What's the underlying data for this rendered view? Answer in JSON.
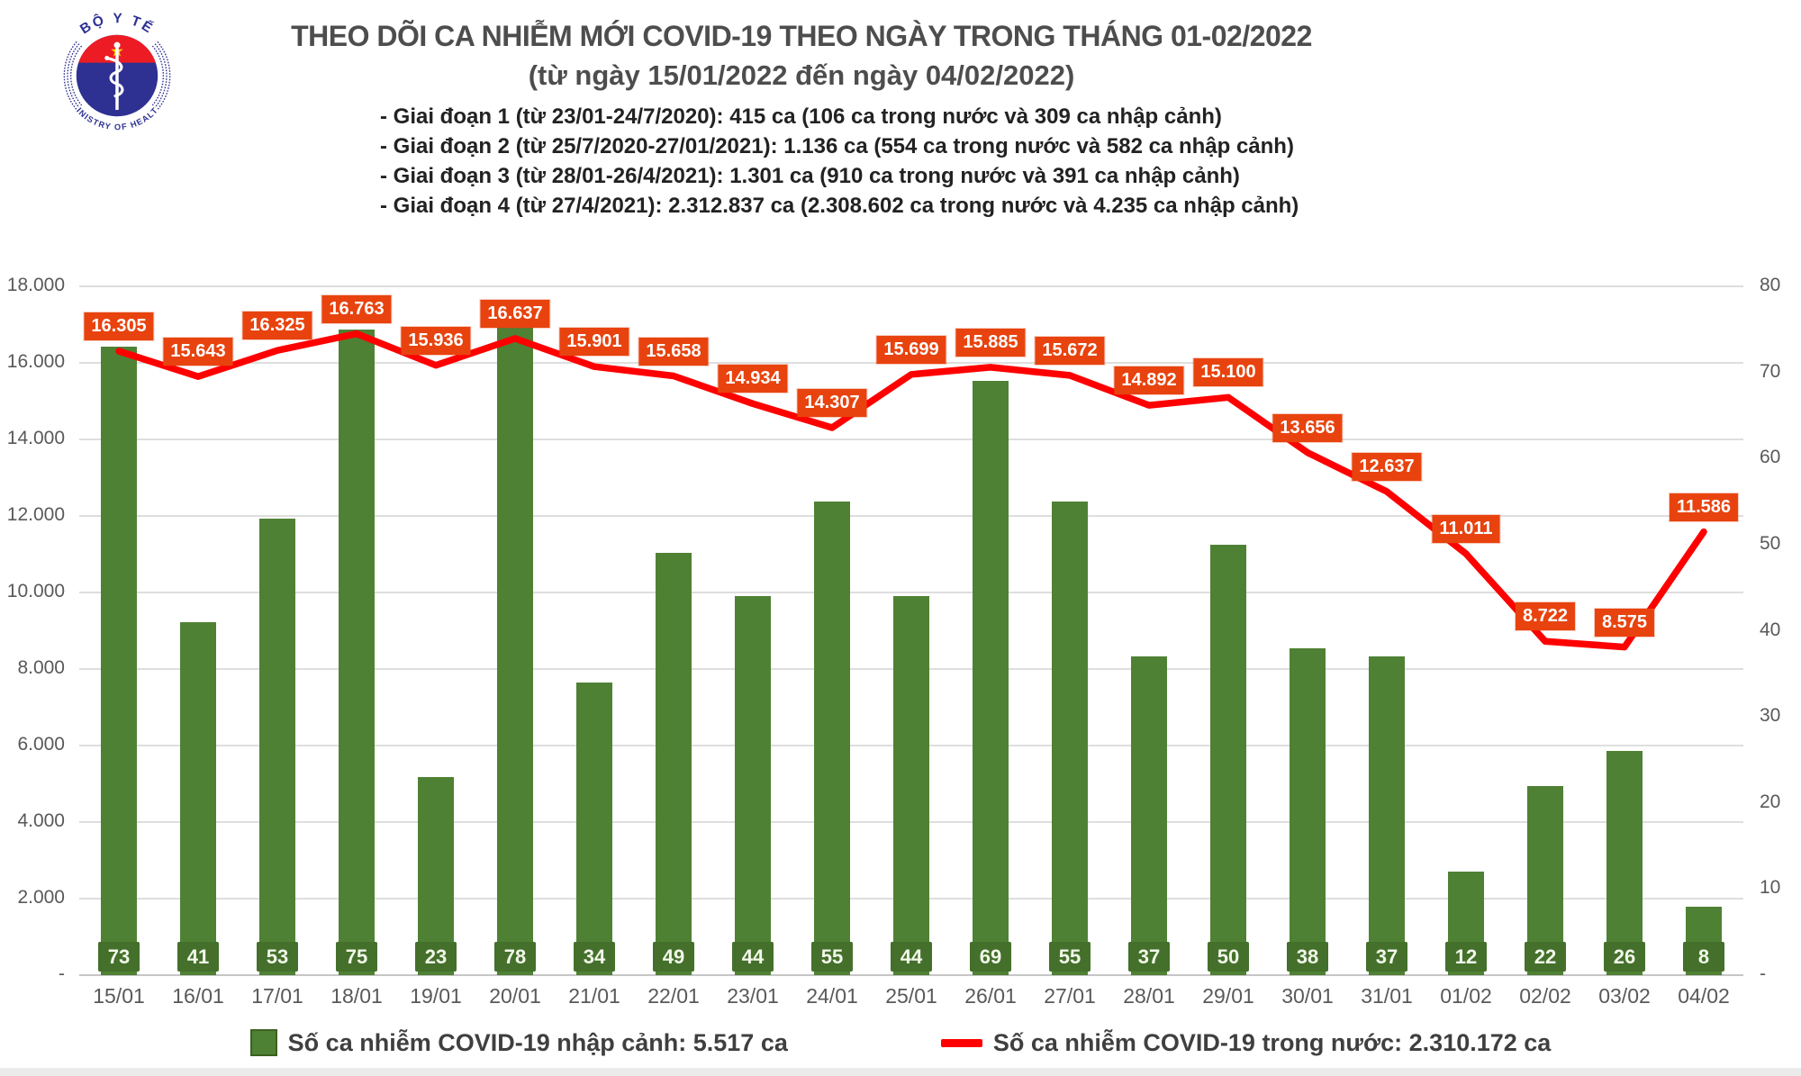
{
  "logo": {
    "top_text": "BỘ Y TẾ",
    "bottom_text": "MINISTRY OF HEALTH",
    "colors": {
      "blue": "#2e3192",
      "red": "#ed1c24",
      "star_yellow": "#ffd500"
    }
  },
  "header": {
    "title_line1": "THEO DÕI CA NHIỄM MỚI COVID-19 THEO NGÀY TRONG THÁNG 01-02/2022",
    "title_line2": "(từ ngày 15/01/2022 đến ngày 04/02/2022)",
    "bullets": [
      "- Giai đoạn 1 (từ 23/01-24/7/2020): 415 ca (106 ca trong nước và 309 ca nhập cảnh)",
      "- Giai đoạn 2 (từ 25/7/2020-27/01/2021): 1.136 ca (554 ca trong nước và 582 ca nhập cảnh)",
      "- Giai đoạn 3 (từ 28/01-26/4/2021): 1.301 ca (910 ca trong nước và 391 ca nhập cảnh)",
      "- Giai đoạn 4 (từ 27/4/2021): 2.312.837 ca (2.308.602 ca trong nước và 4.235 ca nhập cảnh)"
    ]
  },
  "chart_data": {
    "type": "combo",
    "grid": true,
    "legend_position": "bottom",
    "categories": [
      "15/01",
      "16/01",
      "17/01",
      "18/01",
      "19/01",
      "20/01",
      "21/01",
      "22/01",
      "23/01",
      "24/01",
      "25/01",
      "26/01",
      "27/01",
      "28/01",
      "29/01",
      "30/01",
      "31/01",
      "01/02",
      "02/02",
      "03/02",
      "04/02"
    ],
    "series": [
      {
        "name": "Số ca nhiễm COVID-19 nhập cảnh: 5.517 ca",
        "type": "bar",
        "axis": "right",
        "color": "#4f8134",
        "label_box_color": "#44702b",
        "values": [
          73,
          41,
          53,
          75,
          23,
          78,
          34,
          49,
          44,
          55,
          44,
          69,
          55,
          37,
          50,
          38,
          37,
          12,
          22,
          26,
          8
        ]
      },
      {
        "name": "Số ca nhiễm COVID-19 trong nước: 2.310.172 ca",
        "type": "line",
        "axis": "left",
        "color": "#fe0000",
        "label_box_color": "#e8430e",
        "values": [
          16305,
          15643,
          16325,
          16763,
          15936,
          16637,
          15901,
          15658,
          14934,
          14307,
          15699,
          15885,
          15672,
          14892,
          15100,
          13656,
          12637,
          11011,
          8722,
          8575,
          11586
        ],
        "labels": [
          "16.305",
          "15.643",
          "16.325",
          "16.763",
          "15.936",
          "16.637",
          "15.901",
          "15.658",
          "14.934",
          "14.307",
          "15.699",
          "15.885",
          "15.672",
          "14.892",
          "15.100",
          "13.656",
          "12.637",
          "11.011",
          "8.722",
          "8.575",
          "11.586"
        ]
      }
    ],
    "left_axis": {
      "min": 0,
      "max": 18000,
      "step": 2000,
      "tick_labels": [
        "-",
        "2.000",
        "4.000",
        "6.000",
        "8.000",
        "10.000",
        "12.000",
        "14.000",
        "16.000",
        "18.000"
      ]
    },
    "right_axis": {
      "min": 0,
      "max": 80,
      "step": 10,
      "tick_labels": [
        "-",
        "10",
        "20",
        "30",
        "40",
        "50",
        "60",
        "70",
        "80"
      ]
    }
  }
}
